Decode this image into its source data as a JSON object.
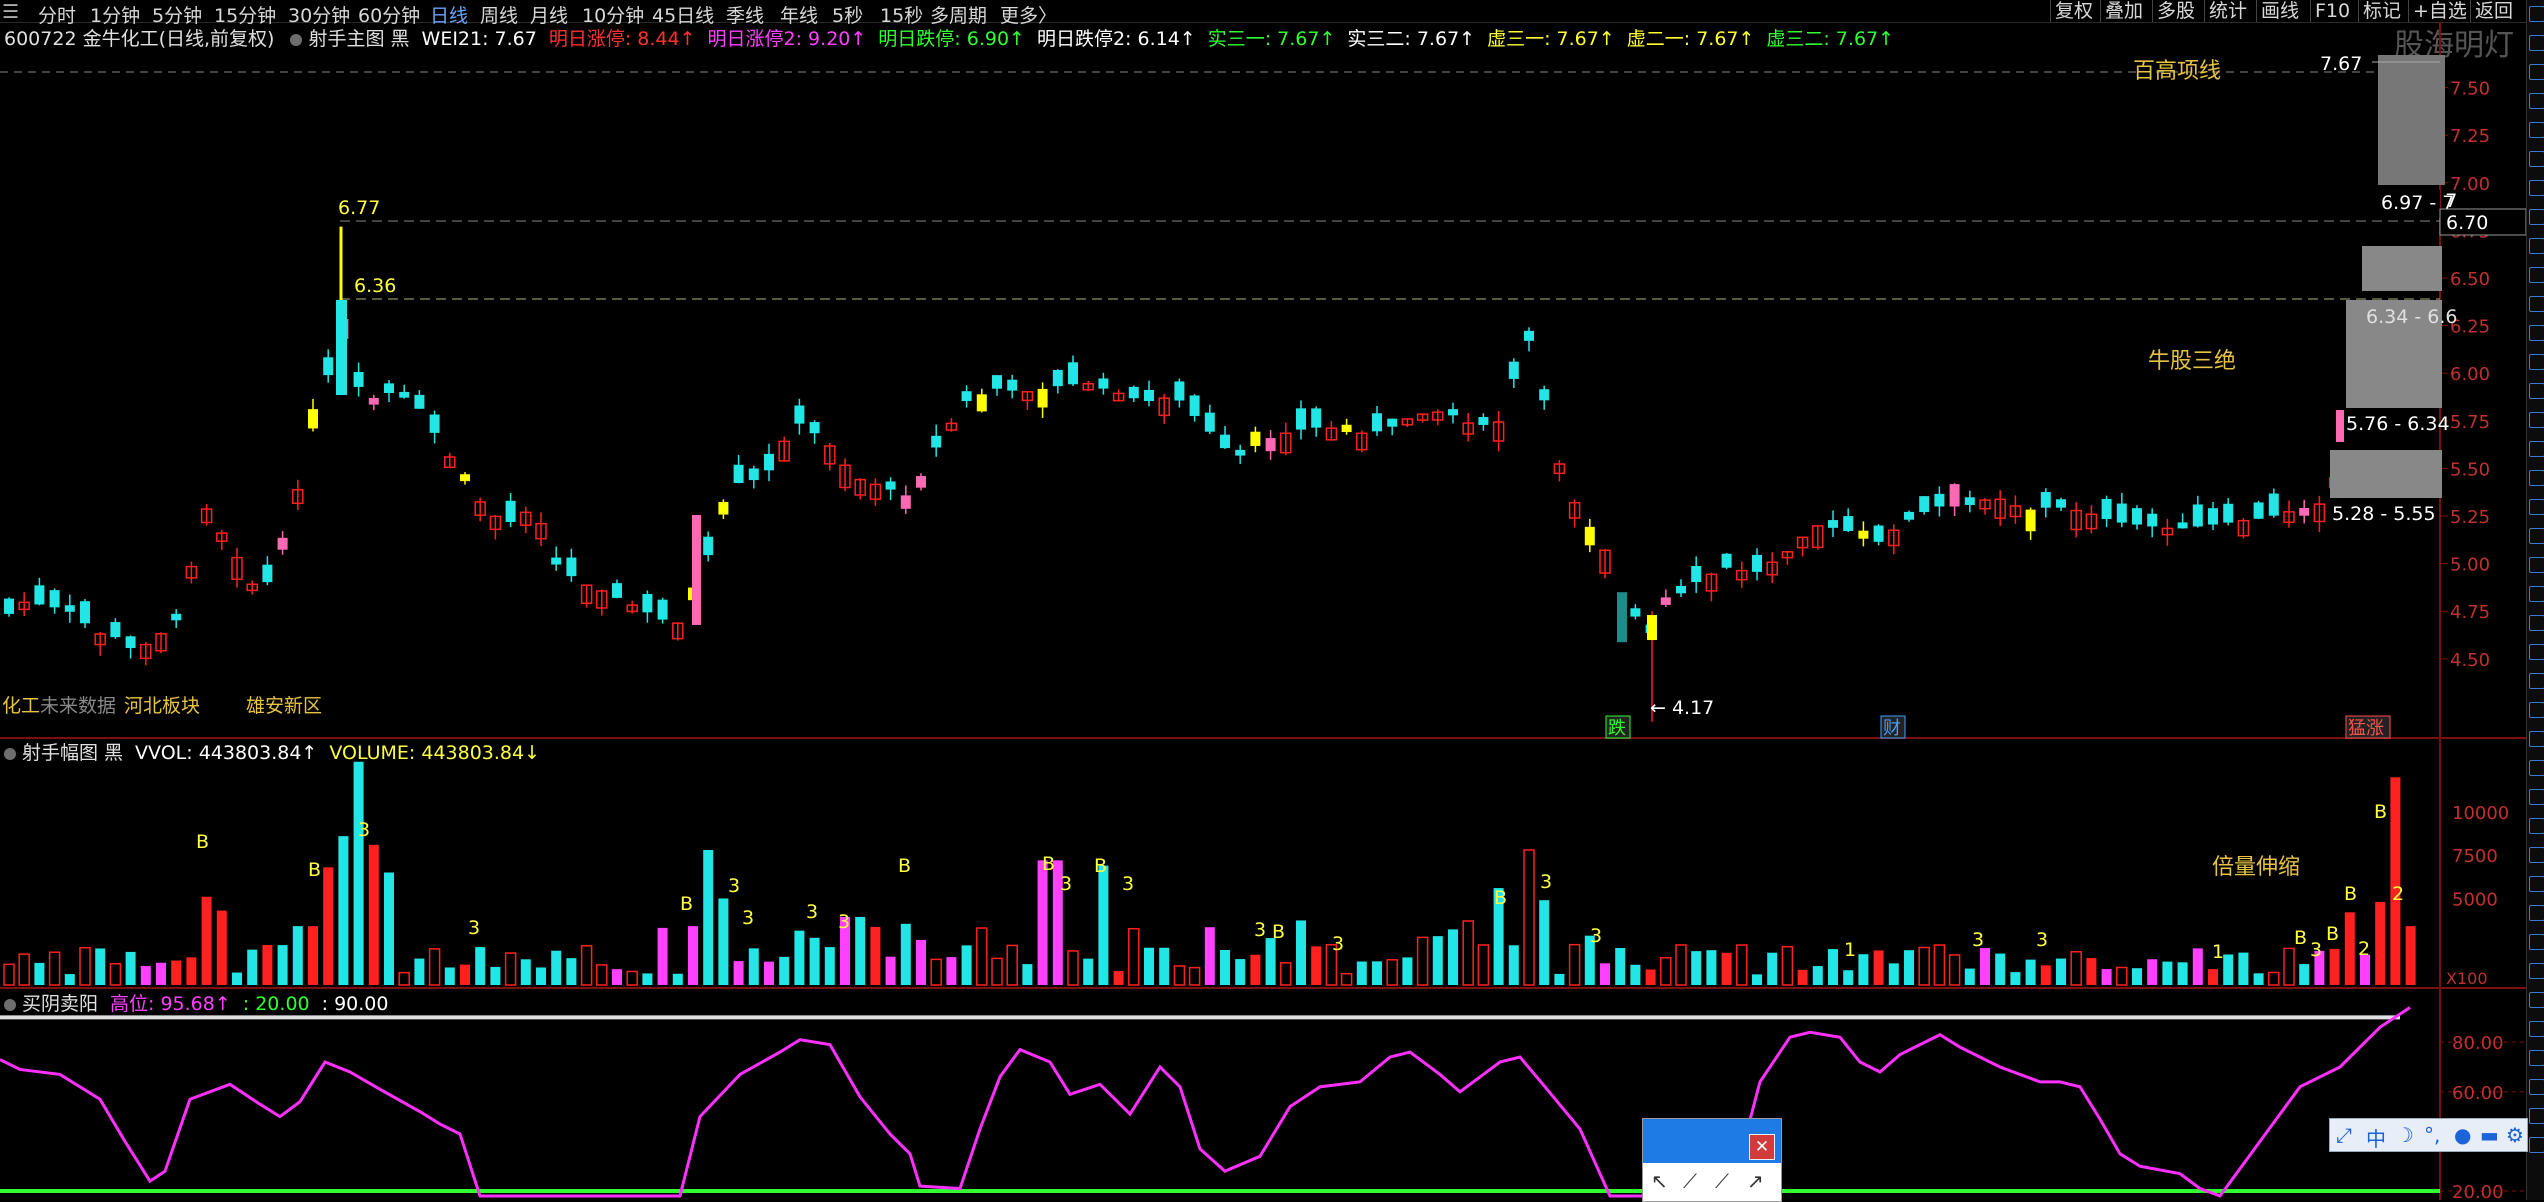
{
  "period_tabs": [
    "分时",
    "1分钟",
    "5分钟",
    "15分钟",
    "30分钟",
    "60分钟",
    "日线",
    "周线",
    "月线",
    "10分钟",
    "45日线",
    "季线",
    "年线",
    "5秒",
    "15秒",
    "多周期",
    "更多〉"
  ],
  "active_period": "日线",
  "toolbar": [
    "复权",
    "叠加",
    "多股",
    "统计",
    "画线",
    "F10",
    "标记",
    "+自选",
    "返回"
  ],
  "header": {
    "stock": "600722 金牛化工(日线,前复权)",
    "indicator": "射手主图 黑",
    "items": [
      {
        "label": "WEI21: 7.67",
        "color": "#ffffff"
      },
      {
        "label": "明日涨停: 8.44↑",
        "color": "#ff3030"
      },
      {
        "label": "明日涨停2: 9.20↑",
        "color": "#ff40ff"
      },
      {
        "label": "明日跌停: 6.90↑",
        "color": "#30ff30"
      },
      {
        "label": "明日跌停2: 6.14↑",
        "color": "#ffffff"
      },
      {
        "label": "实三一: 7.67↑",
        "color": "#30ff30"
      },
      {
        "label": "实三二: 7.67↑",
        "color": "#ffffff"
      },
      {
        "label": "虚三一: 7.67↑",
        "color": "#ffff30"
      },
      {
        "label": "虚二一: 7.67↑",
        "color": "#ffff30"
      },
      {
        "label": "虚三二: 7.67↑",
        "color": "#30ff30"
      }
    ],
    "watermark": "股海明灯"
  },
  "main": {
    "price_axis": [
      "7.50",
      "7.25",
      "7.00",
      "6.75",
      "6.50",
      "6.25",
      "6.00",
      "5.75",
      "5.50",
      "5.25",
      "5.00",
      "4.75",
      "4.50"
    ],
    "current_price": "6.70",
    "price_tag": "7.67",
    "high_label": "6.77",
    "sub_label": "6.36",
    "low_label": "← 4.17",
    "annot_top": "百高项线",
    "annot_mid": "牛股三绝",
    "ranges": [
      "6.97 - 7",
      "6.34 - 6.6",
      "5.76 - 6.34",
      "5.28 - 5.55"
    ],
    "sectors": [
      "化工",
      "未来数据",
      "河北板块",
      "雄安新区"
    ],
    "markers": [
      {
        "text": "跌",
        "color": "#30ff30"
      },
      {
        "text": "财",
        "color": "#40a0ff"
      },
      {
        "text": "猛涨",
        "color": "#ff5050"
      }
    ]
  },
  "volume": {
    "title": "射手幅图 黑",
    "vvol": "VVOL: 443803.84↑",
    "vol": "VOLUME: 443803.84↓",
    "axis": [
      "10000",
      "7500",
      "5000"
    ],
    "unit": "X100",
    "annot": "倍量伸缩"
  },
  "osc": {
    "title": "买阴卖阳",
    "high": "高位: 95.68↑",
    "v20": ": 20.00",
    "v90": ": 90.00",
    "axis": [
      "80.00",
      "60.00",
      "20.00"
    ]
  },
  "toolbox": {
    "label": "中"
  },
  "chart_data": [
    {
      "type": "candlestick",
      "title": "600722 金牛化工(日线,前复权)",
      "ylim": [
        4.1,
        7.75
      ],
      "annotations": [
        "6.77",
        "6.36",
        "4.17",
        "7.67",
        "6.70"
      ]
    },
    {
      "type": "bar",
      "title": "射手幅图",
      "ylim": [
        0,
        13000
      ]
    },
    {
      "type": "line",
      "title": "买阴卖阳",
      "ylim": [
        18,
        97
      ],
      "reference_lines": [
        20,
        90
      ]
    }
  ]
}
